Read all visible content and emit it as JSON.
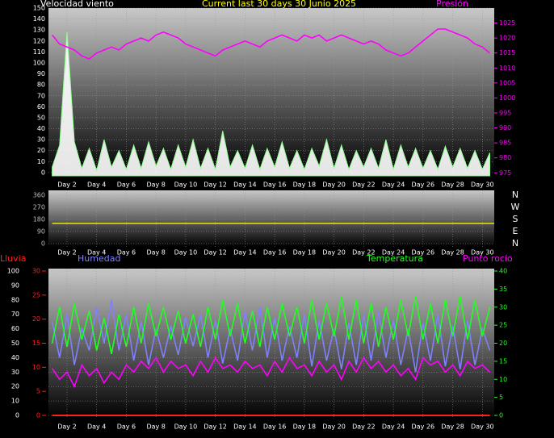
{
  "chart_data": [
    {
      "type": "line",
      "title": "Current last 30 days 30 Junio 2025",
      "ylabel": "Velocidad viento",
      "y2label": "Presión",
      "x": [
        1,
        1.5,
        2,
        2.5,
        3,
        3.5,
        4,
        4.5,
        5,
        5.5,
        6,
        6.5,
        7,
        7.5,
        8,
        8.5,
        9,
        9.5,
        10,
        10.5,
        11,
        11.5,
        12,
        12.5,
        13,
        13.5,
        14,
        14.5,
        15,
        15.5,
        16,
        16.5,
        17,
        17.5,
        18,
        18.5,
        19,
        19.5,
        20,
        20.5,
        21,
        21.5,
        22,
        22.5,
        23,
        23.5,
        24,
        24.5,
        25,
        25.5,
        26,
        26.5,
        27,
        27.5,
        28,
        28.5,
        29,
        29.5,
        30,
        30.5
      ],
      "xlim": [
        0.75,
        30.8
      ],
      "xticks": [
        {
          "value": 2,
          "label": "Day 2"
        },
        {
          "value": 4,
          "label": "Day 4"
        },
        {
          "value": 6,
          "label": "Day 6"
        },
        {
          "value": 8,
          "label": "Day 8"
        },
        {
          "value": 10,
          "label": "Day 10"
        },
        {
          "value": 12,
          "label": "Day 12"
        },
        {
          "value": 14,
          "label": "Day 14"
        },
        {
          "value": 16,
          "label": "Day 16"
        },
        {
          "value": 18,
          "label": "Day 18"
        },
        {
          "value": 20,
          "label": "Day 20"
        },
        {
          "value": 22,
          "label": "Day 22"
        },
        {
          "value": 24,
          "label": "Day 24"
        },
        {
          "value": 26,
          "label": "Day 26"
        },
        {
          "value": 28,
          "label": "Day 28"
        },
        {
          "value": 30,
          "label": "Day 30"
        }
      ],
      "ylim": [
        -3,
        150
      ],
      "yticks": [
        0,
        10,
        20,
        30,
        40,
        50,
        60,
        70,
        80,
        90,
        100,
        110,
        120,
        130,
        140,
        150
      ],
      "y2lim": [
        974,
        1030
      ],
      "y2ticks": [
        975,
        980,
        985,
        990,
        995,
        1000,
        1005,
        1010,
        1015,
        1020,
        1025
      ],
      "grid": true,
      "series": [
        {
          "name": "Velocidad viento",
          "color": "#ffffff",
          "values": [
            5,
            25,
            128,
            28,
            4,
            22,
            2,
            30,
            5,
            20,
            3,
            25,
            4,
            28,
            6,
            22,
            3,
            25,
            5,
            30,
            4,
            22,
            3,
            38,
            5,
            20,
            4,
            25,
            3,
            22,
            5,
            28,
            4,
            20,
            3,
            22,
            6,
            30,
            4,
            25,
            3,
            20,
            5,
            22,
            4,
            30,
            3,
            25,
            5,
            22,
            4,
            20,
            3,
            24,
            5,
            22,
            4,
            20,
            3,
            18
          ]
        },
        {
          "name": "Presión",
          "color": "#ff00ff",
          "axis": "y2",
          "values": [
            1021,
            1018,
            1017,
            1016,
            1014,
            1013,
            1015,
            1016,
            1017,
            1016,
            1018,
            1019,
            1020,
            1019,
            1021,
            1022,
            1021,
            1020,
            1018,
            1017,
            1016,
            1015,
            1014,
            1016,
            1017,
            1018,
            1019,
            1018,
            1017,
            1019,
            1020,
            1021,
            1020,
            1019,
            1021,
            1020,
            1021,
            1019,
            1020,
            1021,
            1020,
            1019,
            1018,
            1019,
            1018,
            1016,
            1015,
            1014,
            1015,
            1017,
            1019,
            1021,
            1023,
            1023,
            1022,
            1021,
            1020,
            1018,
            1017,
            1015
          ]
        }
      ]
    },
    {
      "type": "line",
      "x": [
        1,
        30.8
      ],
      "xlim": [
        0.75,
        30.8
      ],
      "xticks": [
        {
          "value": 2,
          "label": "Day 2"
        },
        {
          "value": 4,
          "label": "Day 4"
        },
        {
          "value": 6,
          "label": "Day 6"
        },
        {
          "value": 8,
          "label": "Day 8"
        },
        {
          "value": 10,
          "label": "Day 10"
        },
        {
          "value": 12,
          "label": "Day 12"
        },
        {
          "value": 14,
          "label": "Day 14"
        },
        {
          "value": 16,
          "label": "Day 16"
        },
        {
          "value": 18,
          "label": "Day 18"
        },
        {
          "value": 20,
          "label": "Day 20"
        },
        {
          "value": 22,
          "label": "Day 22"
        },
        {
          "value": 24,
          "label": "Day 24"
        },
        {
          "value": 26,
          "label": "Day 26"
        },
        {
          "value": 28,
          "label": "Day 28"
        },
        {
          "value": 30,
          "label": "Day 30"
        }
      ],
      "ylim": [
        0,
        360
      ],
      "yticks": [
        0,
        90,
        180,
        270,
        360
      ],
      "y2lim": [
        0,
        360
      ],
      "y2ticks": [
        {
          "value": 360,
          "label": "N"
        },
        {
          "value": 270,
          "label": "W"
        },
        {
          "value": 180,
          "label": "S"
        },
        {
          "value": 90,
          "label": "E"
        },
        {
          "value": 0,
          "label": "N"
        }
      ],
      "grid": true,
      "series": [
        {
          "color": "#e8e800",
          "values": [
            150,
            150
          ]
        }
      ]
    },
    {
      "type": "line",
      "x": [
        1,
        1.5,
        2,
        2.5,
        3,
        3.5,
        4,
        4.5,
        5,
        5.5,
        6,
        6.5,
        7,
        7.5,
        8,
        8.5,
        9,
        9.5,
        10,
        10.5,
        11,
        11.5,
        12,
        12.5,
        13,
        13.5,
        14,
        14.5,
        15,
        15.5,
        16,
        16.5,
        17,
        17.5,
        18,
        18.5,
        19,
        19.5,
        20,
        20.5,
        21,
        21.5,
        22,
        22.5,
        23,
        23.5,
        24,
        24.5,
        25,
        25.5,
        26,
        26.5,
        27,
        27.5,
        28,
        28.5,
        29,
        29.5,
        30,
        30.5
      ],
      "xlim": [
        0.75,
        30.8
      ],
      "xticks": [
        {
          "value": 2,
          "label": "Day 2"
        },
        {
          "value": 4,
          "label": "Day 4"
        },
        {
          "value": 6,
          "label": "Day 6"
        },
        {
          "value": 8,
          "label": "Day 8"
        },
        {
          "value": 10,
          "label": "Day 10"
        },
        {
          "value": 12,
          "label": "Day 12"
        },
        {
          "value": 14,
          "label": "Day 14"
        },
        {
          "value": 16,
          "label": "Day 16"
        },
        {
          "value": 18,
          "label": "Day 18"
        },
        {
          "value": 20,
          "label": "Day 20"
        },
        {
          "value": 22,
          "label": "Day 22"
        },
        {
          "value": 24,
          "label": "Day 24"
        },
        {
          "value": 26,
          "label": "Day 26"
        },
        {
          "value": 28,
          "label": "Day 28"
        },
        {
          "value": 30,
          "label": "Day 30"
        }
      ],
      "ylim": [
        0,
        100
      ],
      "yticks": [
        0,
        10,
        20,
        30,
        40,
        50,
        60,
        70,
        80,
        90,
        100
      ],
      "y3lim": [
        0,
        30
      ],
      "y3ticks": [
        0,
        5,
        10,
        15,
        20,
        25,
        30
      ],
      "y2lim": [
        0,
        40
      ],
      "y2ticks": [
        0,
        5,
        10,
        15,
        20,
        25,
        30,
        35,
        40
      ],
      "grid": true,
      "series": [
        {
          "name": "Lluvia",
          "color": "#ff2020",
          "axis": "y3",
          "values": [
            0,
            0,
            0,
            0,
            0,
            0,
            0,
            0,
            0,
            0,
            0,
            0,
            0,
            0,
            0,
            0,
            0,
            0,
            0,
            0,
            0,
            0,
            0,
            0,
            0,
            0,
            0,
            0,
            0,
            0,
            0,
            0,
            0,
            0,
            0,
            0,
            0,
            0,
            0,
            0,
            0,
            0,
            0,
            0,
            0,
            0,
            0,
            0,
            0,
            0,
            0,
            0,
            0,
            0,
            0,
            0,
            0,
            0,
            0,
            0
          ]
        },
        {
          "name": "Humedad",
          "color": "#8080ff",
          "values": [
            65,
            40,
            70,
            35,
            60,
            45,
            75,
            50,
            80,
            45,
            70,
            38,
            65,
            35,
            60,
            40,
            62,
            42,
            68,
            48,
            70,
            40,
            66,
            36,
            60,
            38,
            72,
            45,
            75,
            40,
            68,
            38,
            62,
            40,
            70,
            34,
            66,
            38,
            60,
            32,
            64,
            35,
            70,
            38,
            72,
            40,
            66,
            35,
            60,
            30,
            64,
            38,
            70,
            34,
            62,
            32,
            66,
            35,
            60,
            45
          ]
        },
        {
          "name": "Temperatura",
          "color": "#20ff20",
          "axis": "y2",
          "values": [
            20,
            30,
            19,
            31,
            21,
            29,
            18,
            27,
            17,
            28,
            19,
            30,
            20,
            31,
            22,
            30,
            21,
            29,
            20,
            28,
            19,
            30,
            21,
            32,
            22,
            31,
            20,
            29,
            19,
            30,
            21,
            31,
            22,
            30,
            20,
            32,
            21,
            31,
            22,
            33,
            21,
            32,
            20,
            31,
            19,
            30,
            21,
            32,
            22,
            33,
            21,
            31,
            20,
            32,
            22,
            33,
            21,
            32,
            22,
            30
          ]
        },
        {
          "name": "Punto rocío",
          "color": "#ff00ff",
          "axis": "y2",
          "values": [
            13,
            10,
            12,
            8,
            14,
            11,
            13,
            9,
            12,
            10,
            14,
            12,
            15,
            13,
            16,
            12,
            15,
            13,
            14,
            11,
            15,
            12,
            16,
            13,
            14,
            12,
            15,
            13,
            14,
            11,
            15,
            12,
            16,
            13,
            14,
            11,
            15,
            12,
            14,
            10,
            15,
            12,
            16,
            13,
            15,
            12,
            14,
            11,
            13,
            10,
            16,
            14,
            15,
            12,
            14,
            11,
            15,
            13,
            14,
            12
          ]
        }
      ]
    }
  ]
}
